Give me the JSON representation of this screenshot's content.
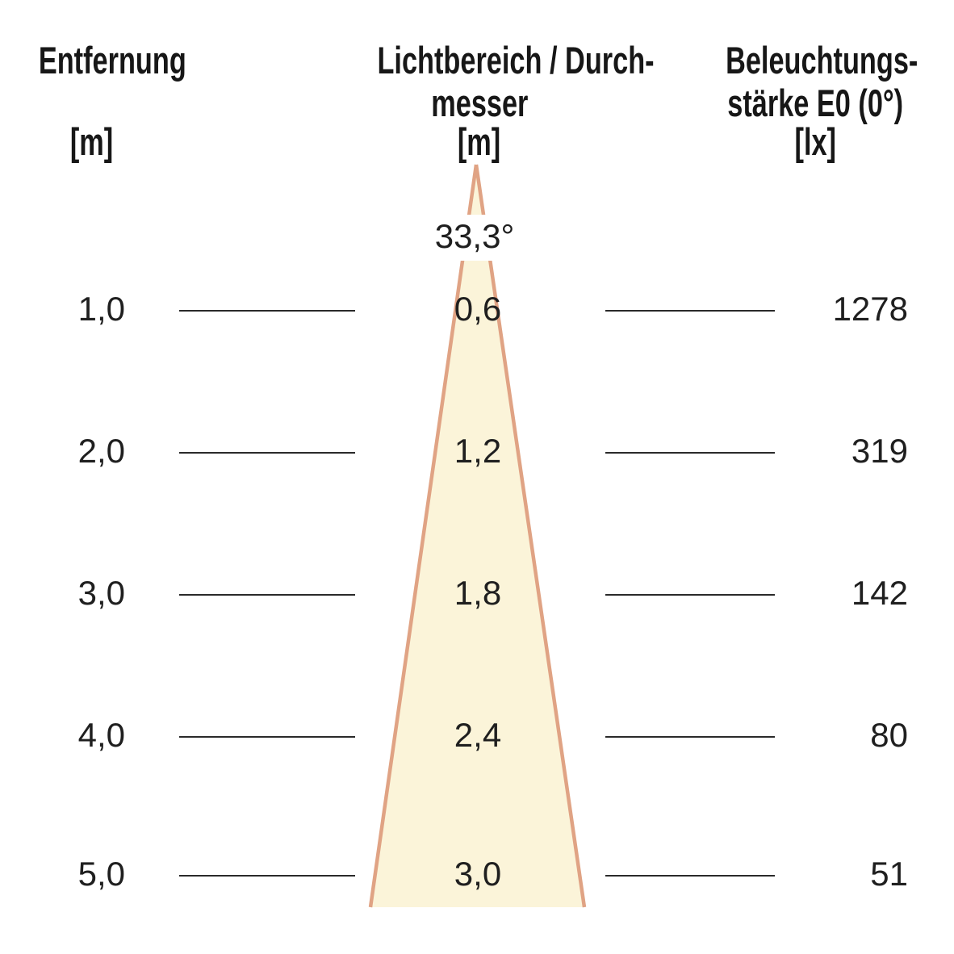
{
  "header": {
    "col_distance": {
      "title": "Entfernung",
      "unit": "[m]"
    },
    "col_diameter": {
      "title_line1": "Lichtbereich / Durch-",
      "title_line2": "messer",
      "unit": "[m]"
    },
    "col_illuminance": {
      "title_line1": "Beleuchtungs-",
      "title_line2": "stärke E0 (0°)",
      "unit": "[lx]"
    }
  },
  "cone": {
    "beam_angle_label": "33,3°",
    "fill_color": "#FBF4D9",
    "stroke_color": "#E0A384"
  },
  "rows": [
    {
      "distance": "1,0",
      "diameter": "0,6",
      "illuminance": "1278"
    },
    {
      "distance": "2,0",
      "diameter": "1,2",
      "illuminance": "319"
    },
    {
      "distance": "3,0",
      "diameter": "1,8",
      "illuminance": "142"
    },
    {
      "distance": "4,0",
      "diameter": "2,4",
      "illuminance": "80"
    },
    {
      "distance": "5,0",
      "diameter": "3,0",
      "illuminance": "51"
    }
  ],
  "chart_data": {
    "type": "table",
    "title": "Lichtkegel-Diagramm (beam cone diagram)",
    "columns": [
      "Entfernung [m]",
      "Lichtbereich / Durchmesser [m]",
      "Beleuchtungsstärke E0 (0°) [lx]"
    ],
    "rows": [
      [
        1.0,
        0.6,
        1278
      ],
      [
        2.0,
        1.2,
        319
      ],
      [
        3.0,
        1.8,
        142
      ],
      [
        4.0,
        2.4,
        80
      ],
      [
        5.0,
        3.0,
        51
      ]
    ],
    "beam_angle_deg": 33.3,
    "legend_position": "none",
    "grid": false
  }
}
